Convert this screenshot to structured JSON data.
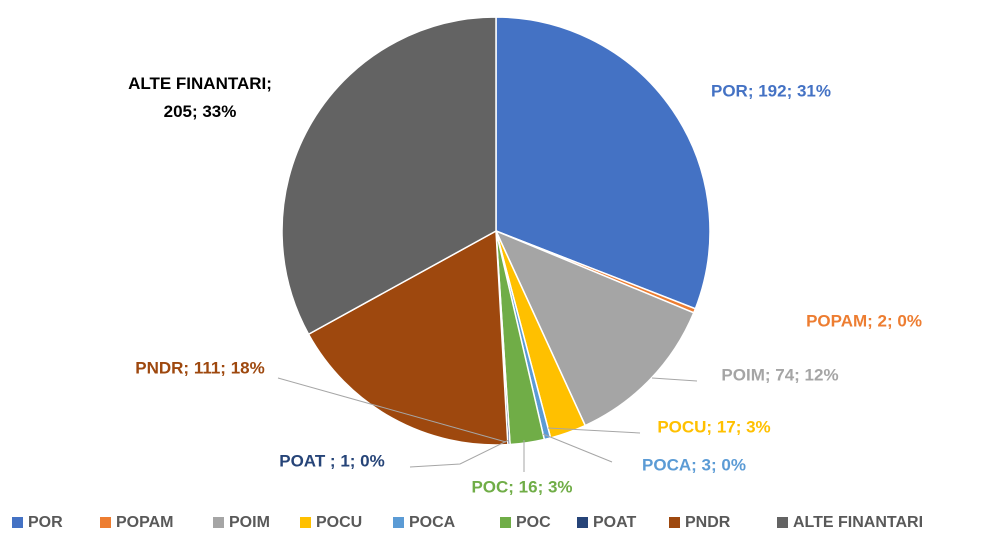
{
  "chart_data": {
    "type": "pie",
    "categories": [
      "POR",
      "POPAM",
      "POIM",
      "POCU",
      "POCA",
      "POC",
      "POAT",
      "PNDR",
      "ALTE FINANTARI"
    ],
    "values": [
      192,
      2,
      74,
      17,
      3,
      16,
      1,
      111,
      205
    ],
    "value_labels": [
      "POR; 192; 31%",
      "POPAM; 2; 0%",
      "POIM; 74; 12%",
      "POCU; 17; 3%",
      "POCA; 3; 0%",
      "POC; 16; 3%",
      "POAT ; 1; 0%",
      "PNDR; 111; 18%",
      "ALTE FINANTARI; 205; 33%"
    ],
    "colors": [
      "#4472c4",
      "#ed7d31",
      "#a5a5a5",
      "#ffc000",
      "#5b9bd5",
      "#70ad47",
      "#264478",
      "#9e480e",
      "#636363"
    ],
    "legend": "bottom"
  }
}
